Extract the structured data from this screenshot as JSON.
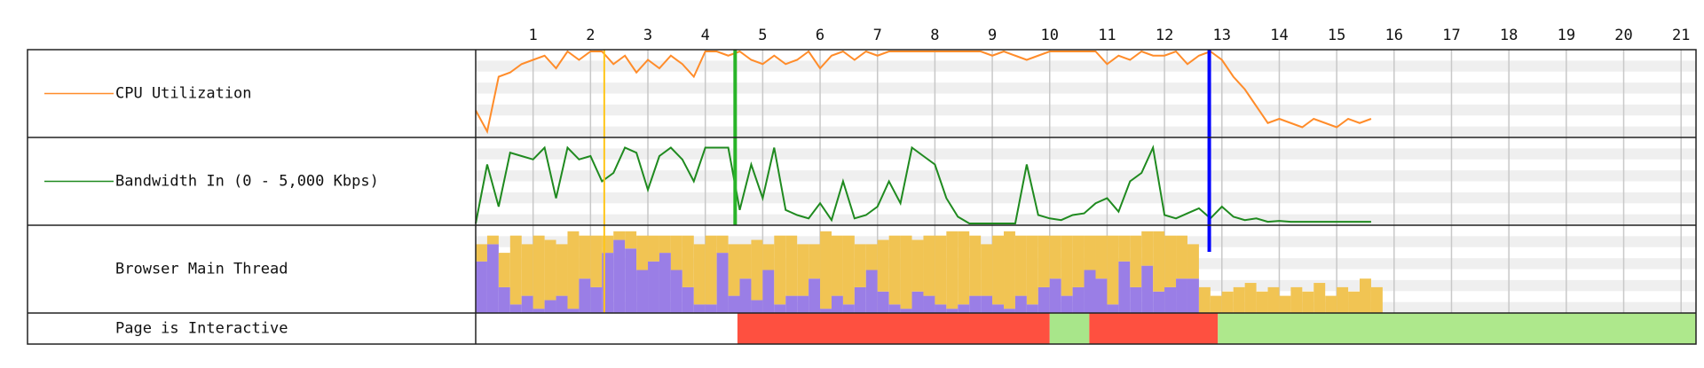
{
  "chart_data": {
    "type": "timeline",
    "xlim": [
      0,
      21.26
    ],
    "xticks": [
      1,
      2,
      3,
      4,
      5,
      6,
      7,
      8,
      9,
      10,
      11,
      12,
      13,
      14,
      15,
      16,
      17,
      18,
      19,
      20,
      21
    ],
    "grid": true,
    "markers": [
      {
        "value": 2.24,
        "color": "#ffc61a"
      },
      {
        "value": 4.52,
        "color": "#28b428"
      },
      {
        "value": 12.78,
        "color": "#0000ff"
      }
    ],
    "rows": [
      {
        "type": "line",
        "title": "CPU Utilization",
        "color": "#ff8c2a",
        "ylim": [
          0,
          100
        ],
        "x": [
          0,
          0.2,
          0.4,
          0.6,
          0.8,
          1,
          1.2,
          1.4,
          1.6,
          1.8,
          2,
          2.2,
          2.4,
          2.6,
          2.8,
          3,
          3.2,
          3.4,
          3.6,
          3.8,
          4,
          4.2,
          4.4,
          4.6,
          4.8,
          5,
          5.2,
          5.4,
          5.6,
          5.8,
          6,
          6.2,
          6.4,
          6.6,
          6.8,
          7,
          7.2,
          7.4,
          7.6,
          7.8,
          8,
          8.2,
          8.4,
          8.6,
          8.8,
          9,
          9.2,
          9.4,
          9.6,
          9.8,
          10,
          10.2,
          10.4,
          10.6,
          10.8,
          11,
          11.2,
          11.4,
          11.6,
          11.8,
          12,
          12.2,
          12.4,
          12.6,
          12.8,
          13,
          13.2,
          13.4,
          13.6,
          13.8,
          14,
          14.2,
          14.4,
          14.6,
          14.8,
          15,
          15.2,
          15.4,
          15.6
        ],
        "values": [
          30,
          5,
          70,
          75,
          85,
          90,
          95,
          80,
          100,
          90,
          100,
          100,
          85,
          95,
          75,
          90,
          80,
          95,
          85,
          70,
          100,
          100,
          95,
          100,
          90,
          85,
          95,
          85,
          90,
          100,
          80,
          95,
          100,
          90,
          100,
          95,
          100,
          100,
          100,
          100,
          100,
          100,
          100,
          100,
          100,
          95,
          100,
          95,
          90,
          95,
          100,
          100,
          100,
          100,
          100,
          85,
          95,
          90,
          100,
          95,
          95,
          100,
          85,
          95,
          100,
          90,
          70,
          55,
          35,
          15,
          20,
          15,
          10,
          20,
          15,
          10,
          20,
          15,
          20
        ]
      },
      {
        "type": "line",
        "title": "Bandwidth In (0 - 5,000 Kbps)",
        "color": "#1f8a1f",
        "ylim": [
          0,
          5000
        ],
        "x": [
          0,
          0.2,
          0.4,
          0.6,
          0.8,
          1,
          1.2,
          1.4,
          1.6,
          1.8,
          2,
          2.2,
          2.4,
          2.6,
          2.8,
          3,
          3.2,
          3.4,
          3.6,
          3.8,
          4,
          4.2,
          4.4,
          4.6,
          4.8,
          5,
          5.2,
          5.4,
          5.6,
          5.8,
          6,
          6.2,
          6.4,
          6.6,
          6.8,
          7,
          7.2,
          7.4,
          7.6,
          7.8,
          8,
          8.2,
          8.4,
          8.6,
          8.8,
          9,
          9.2,
          9.4,
          9.6,
          9.8,
          10,
          10.2,
          10.4,
          10.6,
          10.8,
          11,
          11.2,
          11.4,
          11.6,
          11.8,
          12,
          12.2,
          12.4,
          12.6,
          12.8,
          13,
          13.2,
          13.4,
          13.6,
          13.8,
          14,
          14.2,
          14.4,
          14.6,
          14.8,
          15,
          15.2,
          15.4,
          15.6
        ],
        "values": [
          0,
          3500,
          1000,
          4200,
          4000,
          3800,
          4500,
          1500,
          4500,
          3800,
          4000,
          2500,
          3000,
          4500,
          4200,
          2000,
          4000,
          4500,
          3800,
          2500,
          4500,
          4500,
          4500,
          800,
          3500,
          1500,
          4500,
          800,
          500,
          300,
          1200,
          200,
          2500,
          300,
          500,
          1000,
          2500,
          1200,
          4500,
          4000,
          3500,
          1500,
          400,
          0,
          0,
          0,
          0,
          0,
          3500,
          500,
          300,
          200,
          500,
          600,
          1200,
          1500,
          700,
          2500,
          3000,
          4500,
          500,
          300,
          600,
          900,
          300,
          1000,
          400,
          200,
          300,
          100,
          150,
          100,
          100,
          100,
          100,
          100,
          100,
          100,
          100
        ]
      },
      {
        "type": "bar",
        "title": "Browser Main Thread",
        "ylim": [
          0,
          100
        ],
        "width": 0.2,
        "x": [
          0,
          0.2,
          0.4,
          0.6,
          0.8,
          1,
          1.2,
          1.4,
          1.6,
          1.8,
          2,
          2.2,
          2.4,
          2.6,
          2.8,
          3,
          3.2,
          3.4,
          3.6,
          3.8,
          4,
          4.2,
          4.4,
          4.6,
          4.8,
          5,
          5.2,
          5.4,
          5.6,
          5.8,
          6,
          6.2,
          6.4,
          6.6,
          6.8,
          7,
          7.2,
          7.4,
          7.6,
          7.8,
          8,
          8.2,
          8.4,
          8.6,
          8.8,
          9,
          9.2,
          9.4,
          9.6,
          9.8,
          10,
          10.2,
          10.4,
          10.6,
          10.8,
          11,
          11.2,
          11.4,
          11.6,
          11.8,
          12,
          12.2,
          12.4,
          12.6,
          12.8,
          13,
          13.2,
          13.4,
          13.6,
          13.8,
          14,
          14.2,
          14.4,
          14.6,
          14.8,
          15,
          15.2,
          15.4,
          15.6,
          15.8
        ],
        "series": [
          {
            "color": "#9a7ee6",
            "values": [
              60,
              80,
              30,
              10,
              20,
              5,
              15,
              20,
              5,
              40,
              30,
              70,
              85,
              75,
              50,
              60,
              70,
              50,
              30,
              10,
              10,
              70,
              20,
              40,
              15,
              50,
              10,
              20,
              20,
              40,
              5,
              20,
              10,
              30,
              50,
              25,
              10,
              5,
              25,
              20,
              10,
              5,
              10,
              20,
              20,
              10,
              5,
              20,
              10,
              30,
              40,
              20,
              30,
              50,
              40,
              10,
              60,
              30,
              55,
              25,
              30,
              40,
              40,
              0,
              0,
              0,
              0,
              0,
              0,
              0,
              0,
              0,
              0,
              0,
              0,
              0,
              0,
              0,
              0,
              0
            ]
          },
          {
            "color": "#f1c453",
            "values": [
              20,
              10,
              40,
              80,
              60,
              85,
              70,
              60,
              90,
              50,
              60,
              20,
              10,
              20,
              40,
              30,
              20,
              40,
              60,
              70,
              80,
              20,
              60,
              40,
              70,
              30,
              80,
              70,
              60,
              40,
              90,
              70,
              80,
              50,
              30,
              60,
              80,
              85,
              60,
              70,
              80,
              90,
              85,
              70,
              60,
              80,
              90,
              70,
              80,
              60,
              50,
              70,
              60,
              40,
              50,
              80,
              30,
              60,
              40,
              70,
              60,
              50,
              40,
              30,
              20,
              25,
              30,
              35,
              25,
              30,
              20,
              30,
              25,
              35,
              20,
              30,
              25,
              40,
              30,
              0
            ]
          }
        ]
      },
      {
        "type": "segments",
        "title": "Page is Interactive",
        "segments": [
          {
            "start": 4.56,
            "end": 10.0,
            "color": "#fe5040"
          },
          {
            "start": 10.0,
            "end": 10.69,
            "color": "#a8e68a"
          },
          {
            "start": 10.69,
            "end": 12.93,
            "color": "#fe5040"
          },
          {
            "start": 12.93,
            "end": 21.26,
            "color": "#aee88c"
          }
        ]
      }
    ]
  }
}
